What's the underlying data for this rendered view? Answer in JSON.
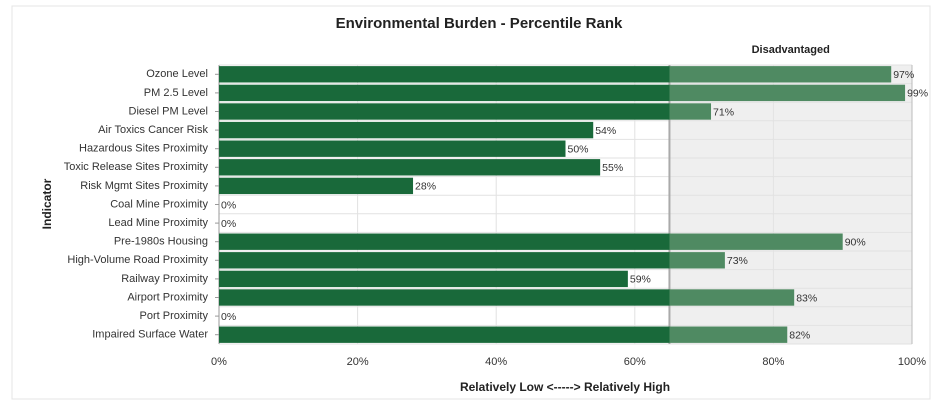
{
  "chart_data": {
    "type": "bar",
    "orientation": "horizontal",
    "title": "Environmental Burden - Percentile Rank",
    "x_label": "Relatively Low <-----> Relatively High",
    "y_label": "Indicator",
    "categories": [
      "Ozone Level",
      "PM 2.5 Level",
      "Diesel PM Level",
      "Air Toxics Cancer Risk",
      "Hazardous Sites Proximity",
      "Toxic Release Sites Proximity",
      "Risk Mgmt Sites Proximity",
      "Coal Mine Proximity",
      "Lead Mine Proximity",
      "Pre-1980s Housing",
      "High-Volume Road Proximity",
      "Railway Proximity",
      "Airport Proximity",
      "Port Proximity",
      "Impaired Surface Water"
    ],
    "values": [
      97,
      99,
      71,
      54,
      50,
      55,
      28,
      0,
      0,
      90,
      73,
      59,
      83,
      0,
      82
    ],
    "value_labels": [
      "97%",
      "99%",
      "71%",
      "54%",
      "50%",
      "55%",
      "28%",
      "0%",
      "0%",
      "90%",
      "73%",
      "59%",
      "83%",
      "0%",
      "82%"
    ],
    "color": "#19693a",
    "threshold": 65,
    "threshold_label": "Disadvantaged",
    "threshold_color": "#4f8a62",
    "xlim": [
      0,
      100
    ],
    "xticks": [
      {
        "value": 0,
        "label": "0%"
      },
      {
        "value": 20,
        "label": "20%"
      },
      {
        "value": 40,
        "label": "40%"
      },
      {
        "value": 60,
        "label": "60%"
      },
      {
        "value": 80,
        "label": "80%"
      },
      {
        "value": 100,
        "label": "100%"
      }
    ],
    "grid": true
  }
}
